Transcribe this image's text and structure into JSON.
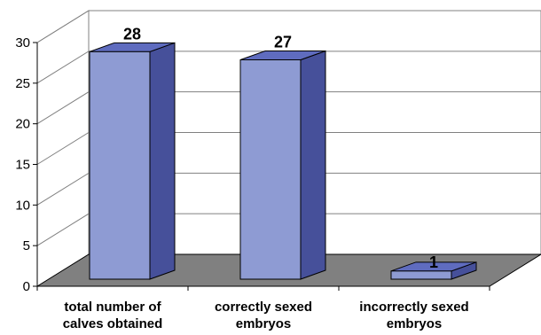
{
  "chart_data": {
    "type": "bar",
    "categories": [
      [
        "total number of",
        "calves obtained"
      ],
      [
        "correctly sexed",
        "embryos"
      ],
      [
        "incorrectly sexed",
        "embryos"
      ]
    ],
    "values": [
      28,
      27,
      1
    ],
    "data_labels": [
      "28",
      "27",
      "1"
    ],
    "ylim": [
      0,
      30
    ],
    "yticks": [
      "0",
      "5",
      "10",
      "15",
      "20",
      "25",
      "30"
    ],
    "grid": true,
    "three_d": true,
    "colors": {
      "bar_front": "#8E9BD3",
      "bar_side": "#46509A",
      "bar_top": "#5F6CBF",
      "bar_edge": "#000000",
      "floor": "#808080",
      "grid": "#808080"
    }
  }
}
